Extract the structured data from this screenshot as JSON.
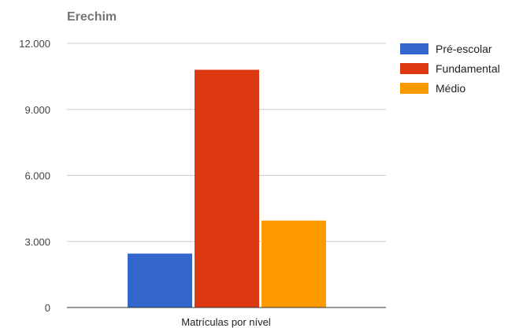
{
  "chart_data": {
    "type": "bar",
    "title": "Erechim",
    "xlabel": "Matrículas por nível",
    "ylabel": "",
    "categories": [
      "Matrículas por nível"
    ],
    "series": [
      {
        "name": "Pré-escolar",
        "values": [
          2450
        ],
        "color": "#3366cc"
      },
      {
        "name": "Fundamental",
        "values": [
          10800
        ],
        "color": "#dc3912"
      },
      {
        "name": "Médio",
        "values": [
          3950
        ],
        "color": "#ff9900"
      }
    ],
    "ylim": [
      0,
      12000
    ],
    "yticks": [
      {
        "value": 0,
        "label": "0"
      },
      {
        "value": 3000,
        "label": "3.000"
      },
      {
        "value": 6000,
        "label": "6.000"
      },
      {
        "value": 9000,
        "label": "9.000"
      },
      {
        "value": 12000,
        "label": "12.000"
      }
    ],
    "grid": true,
    "legend_position": "right"
  }
}
